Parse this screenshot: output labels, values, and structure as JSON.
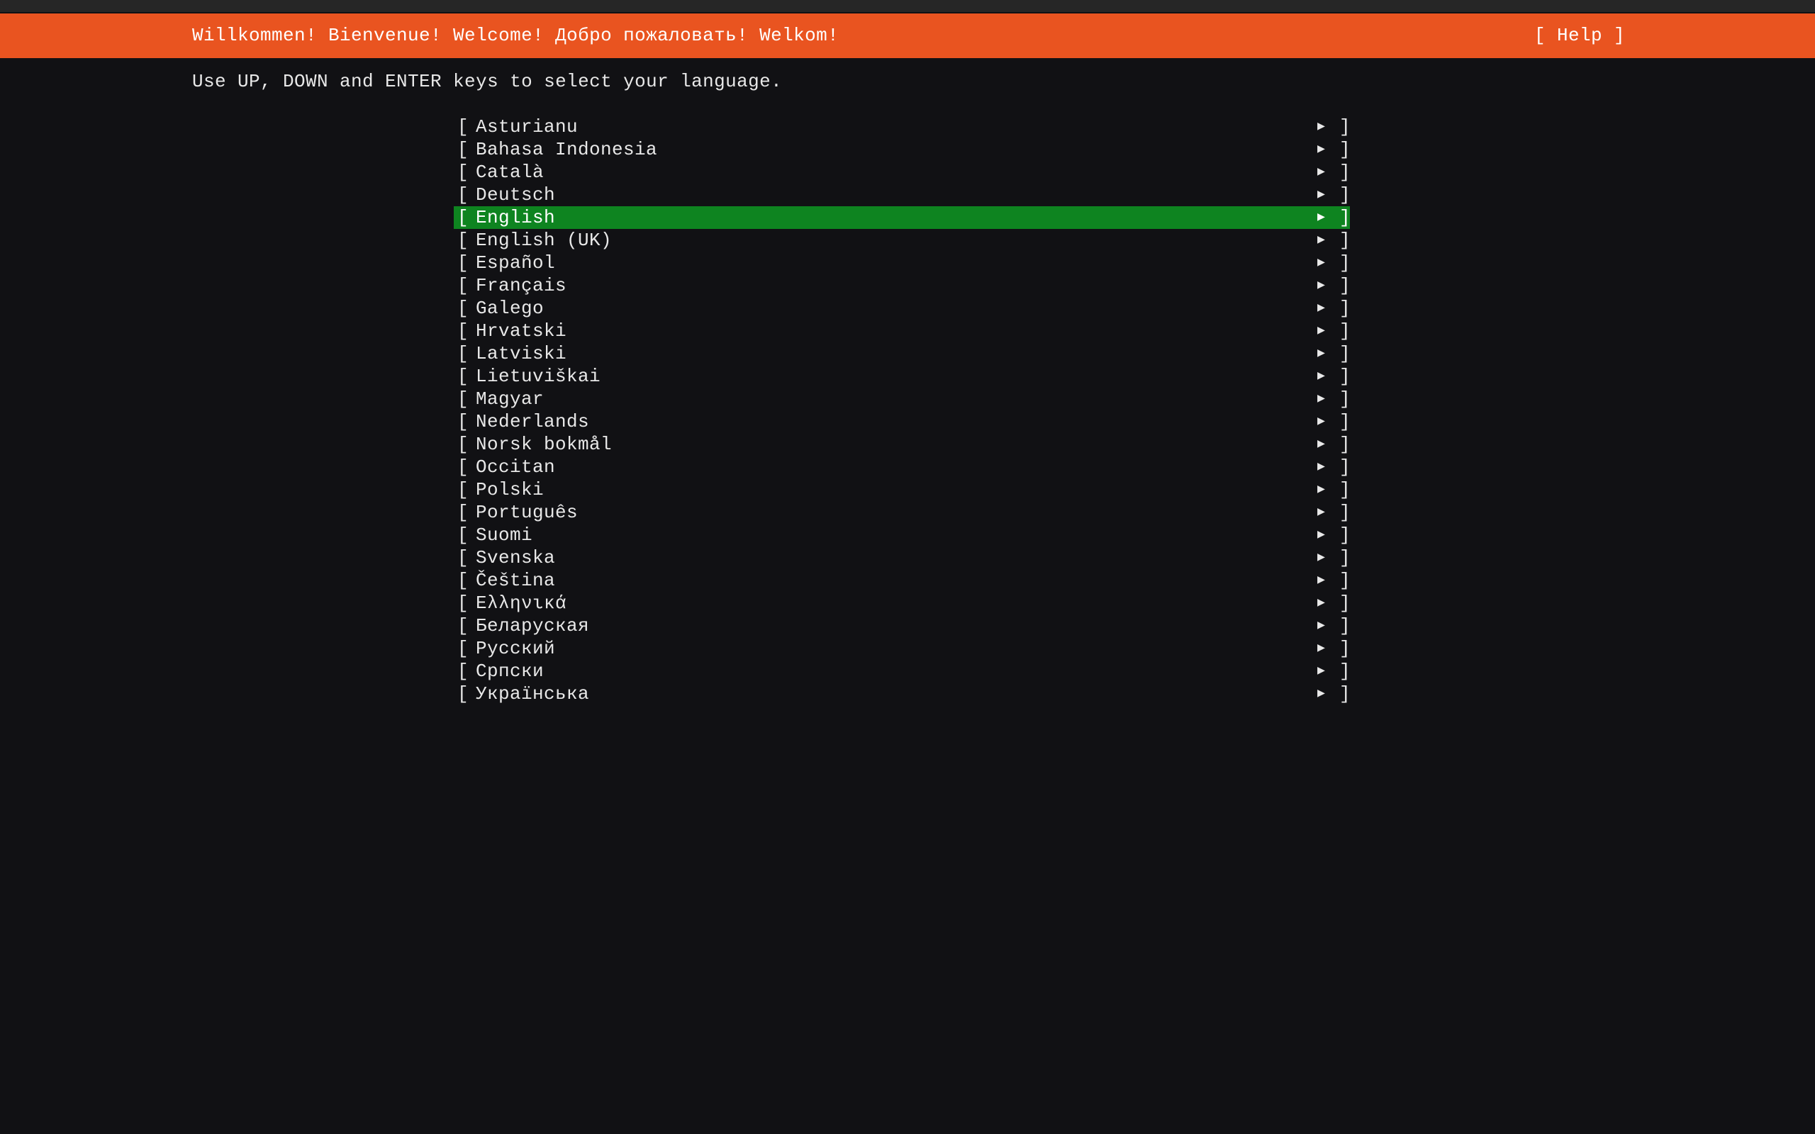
{
  "header": {
    "title": "Willkommen! Bienvenue! Welcome! Добро пожаловать! Welkom!",
    "help_label": "[ Help ]",
    "color": "#E95420"
  },
  "instruction": "Use UP, DOWN and ENTER keys to select your language.",
  "selected_color": "#0E8420",
  "selected_index": 4,
  "languages": [
    {
      "label": "Asturianu"
    },
    {
      "label": "Bahasa Indonesia"
    },
    {
      "label": "Català"
    },
    {
      "label": "Deutsch"
    },
    {
      "label": "English"
    },
    {
      "label": "English (UK)"
    },
    {
      "label": "Español"
    },
    {
      "label": "Français"
    },
    {
      "label": "Galego"
    },
    {
      "label": "Hrvatski"
    },
    {
      "label": "Latviski"
    },
    {
      "label": "Lietuviškai"
    },
    {
      "label": "Magyar"
    },
    {
      "label": "Nederlands"
    },
    {
      "label": "Norsk bokmål"
    },
    {
      "label": "Occitan"
    },
    {
      "label": "Polski"
    },
    {
      "label": "Português"
    },
    {
      "label": "Suomi"
    },
    {
      "label": "Svenska"
    },
    {
      "label": "Čeština"
    },
    {
      "label": "Ελληνικά"
    },
    {
      "label": "Беларуская"
    },
    {
      "label": "Русский"
    },
    {
      "label": "Српски"
    },
    {
      "label": "Українська"
    }
  ],
  "row_open": "[",
  "row_close": "]",
  "row_arrow": "▶"
}
